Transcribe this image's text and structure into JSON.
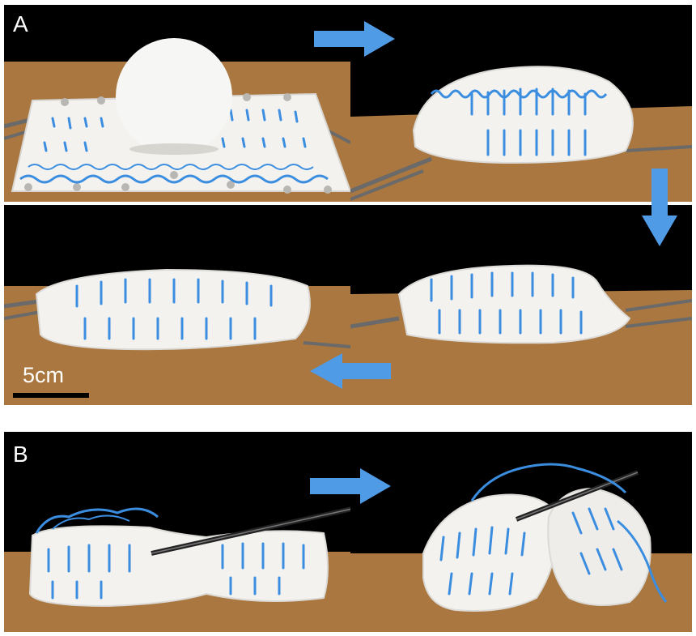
{
  "panels": {
    "a": {
      "label": "A"
    },
    "b": {
      "label": "B"
    }
  },
  "scale_bar": {
    "label": "5cm"
  },
  "colors": {
    "background": "#000000",
    "table": "#a9773f",
    "fabric": "#f2f1ee",
    "thread": "#3b8de0",
    "arrow": "#4f9be6",
    "rod": "#5a5a5a"
  },
  "icons": [
    "arrow-right-icon",
    "arrow-down-icon",
    "arrow-left-icon"
  ]
}
